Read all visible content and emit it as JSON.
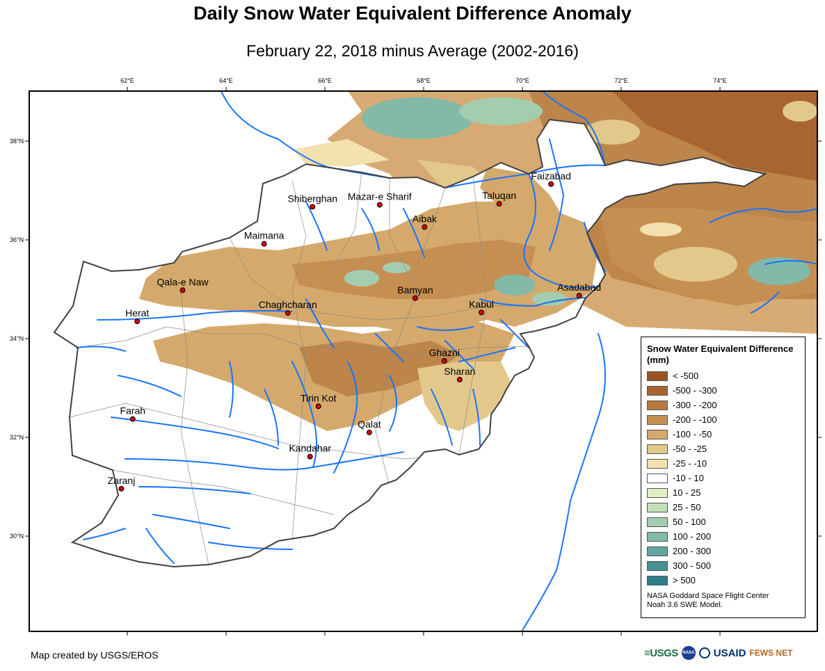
{
  "header": {
    "title": "Daily Snow Water Equivalent Difference Anomaly",
    "subtitle": "February 22, 2018 minus Average (2002-2016)"
  },
  "axes": {
    "longitudes": [
      {
        "value": 62,
        "label": "62°E"
      },
      {
        "value": 64,
        "label": "64°E"
      },
      {
        "value": 66,
        "label": "66°E"
      },
      {
        "value": 68,
        "label": "68°E"
      },
      {
        "value": 70,
        "label": "70°E"
      },
      {
        "value": 72,
        "label": "72°E"
      },
      {
        "value": 74,
        "label": "74°E"
      }
    ],
    "latitudes": [
      {
        "value": 38,
        "label": "38°N"
      },
      {
        "value": 36,
        "label": "36°N"
      },
      {
        "value": 34,
        "label": "34°N"
      },
      {
        "value": 32,
        "label": "32°N"
      },
      {
        "value": 30,
        "label": "30°N"
      }
    ]
  },
  "cities": [
    {
      "name": "Faizabad",
      "lon": 70.58,
      "lat": 37.13
    },
    {
      "name": "Taluqan",
      "lon": 69.53,
      "lat": 36.73
    },
    {
      "name": "Mazar-e Sharif",
      "lon": 67.11,
      "lat": 36.71
    },
    {
      "name": "Shiberghan",
      "lon": 65.75,
      "lat": 36.67
    },
    {
      "name": "Aibak",
      "lon": 68.02,
      "lat": 36.26
    },
    {
      "name": "Maimana",
      "lon": 64.77,
      "lat": 35.92
    },
    {
      "name": "Qala-e Naw",
      "lon": 63.12,
      "lat": 34.98
    },
    {
      "name": "Bamyan",
      "lon": 67.83,
      "lat": 34.82
    },
    {
      "name": "Asadabad",
      "lon": 71.15,
      "lat": 34.87
    },
    {
      "name": "Kabul",
      "lon": 69.17,
      "lat": 34.53
    },
    {
      "name": "Chaghcharan",
      "lon": 65.25,
      "lat": 34.52
    },
    {
      "name": "Herat",
      "lon": 62.2,
      "lat": 34.35
    },
    {
      "name": "Ghazni",
      "lon": 68.42,
      "lat": 33.55
    },
    {
      "name": "Sharan",
      "lon": 68.73,
      "lat": 33.17
    },
    {
      "name": "Tirin Kot",
      "lon": 65.87,
      "lat": 32.63
    },
    {
      "name": "Farah",
      "lon": 62.11,
      "lat": 32.37
    },
    {
      "name": "Qalat",
      "lon": 66.9,
      "lat": 32.1
    },
    {
      "name": "Kandahar",
      "lon": 65.7,
      "lat": 31.61
    },
    {
      "name": "Zaranj",
      "lon": 61.88,
      "lat": 30.96
    }
  ],
  "legend": {
    "title": "Snow Water Equivalent Difference (mm)",
    "classes": [
      {
        "label": "< -500",
        "color": "#9a5422"
      },
      {
        "label": "-500 - -300",
        "color": "#a8652f"
      },
      {
        "label": "-300 - -200",
        "color": "#b8793f"
      },
      {
        "label": "-200 - -100",
        "color": "#c68f52"
      },
      {
        "label": "-100 - -50",
        "color": "#d4a96b"
      },
      {
        "label": "-50 - -25",
        "color": "#e3c88c"
      },
      {
        "label": "-25 - -10",
        "color": "#f3e2ad"
      },
      {
        "label": "-10 - 10",
        "color": "#ffffff"
      },
      {
        "label": "10 - 25",
        "color": "#e1efc4"
      },
      {
        "label": "25 - 50",
        "color": "#c4dfb7"
      },
      {
        "label": "50 - 100",
        "color": "#a3cdb0"
      },
      {
        "label": "100 - 200",
        "color": "#82b9a8"
      },
      {
        "label": "200 - 300",
        "color": "#62a59f"
      },
      {
        "label": "300 - 500",
        "color": "#459296"
      },
      {
        "label": "> 500",
        "color": "#2d7f8b"
      }
    ],
    "credit_line1": "NASA Goddard Space Flight Center",
    "credit_line2": "Noah 3.6 SWE Model."
  },
  "footer": {
    "credit": "Map created by USGS/EROS",
    "logo_usgs": "≡USGS",
    "logo_nasa": "NASA",
    "logo_usaid": "USAID",
    "logo_fews": "FEWS NET"
  },
  "colors": {
    "river": "#1874ff",
    "border": "#404040",
    "city_marker": "#d40000"
  }
}
